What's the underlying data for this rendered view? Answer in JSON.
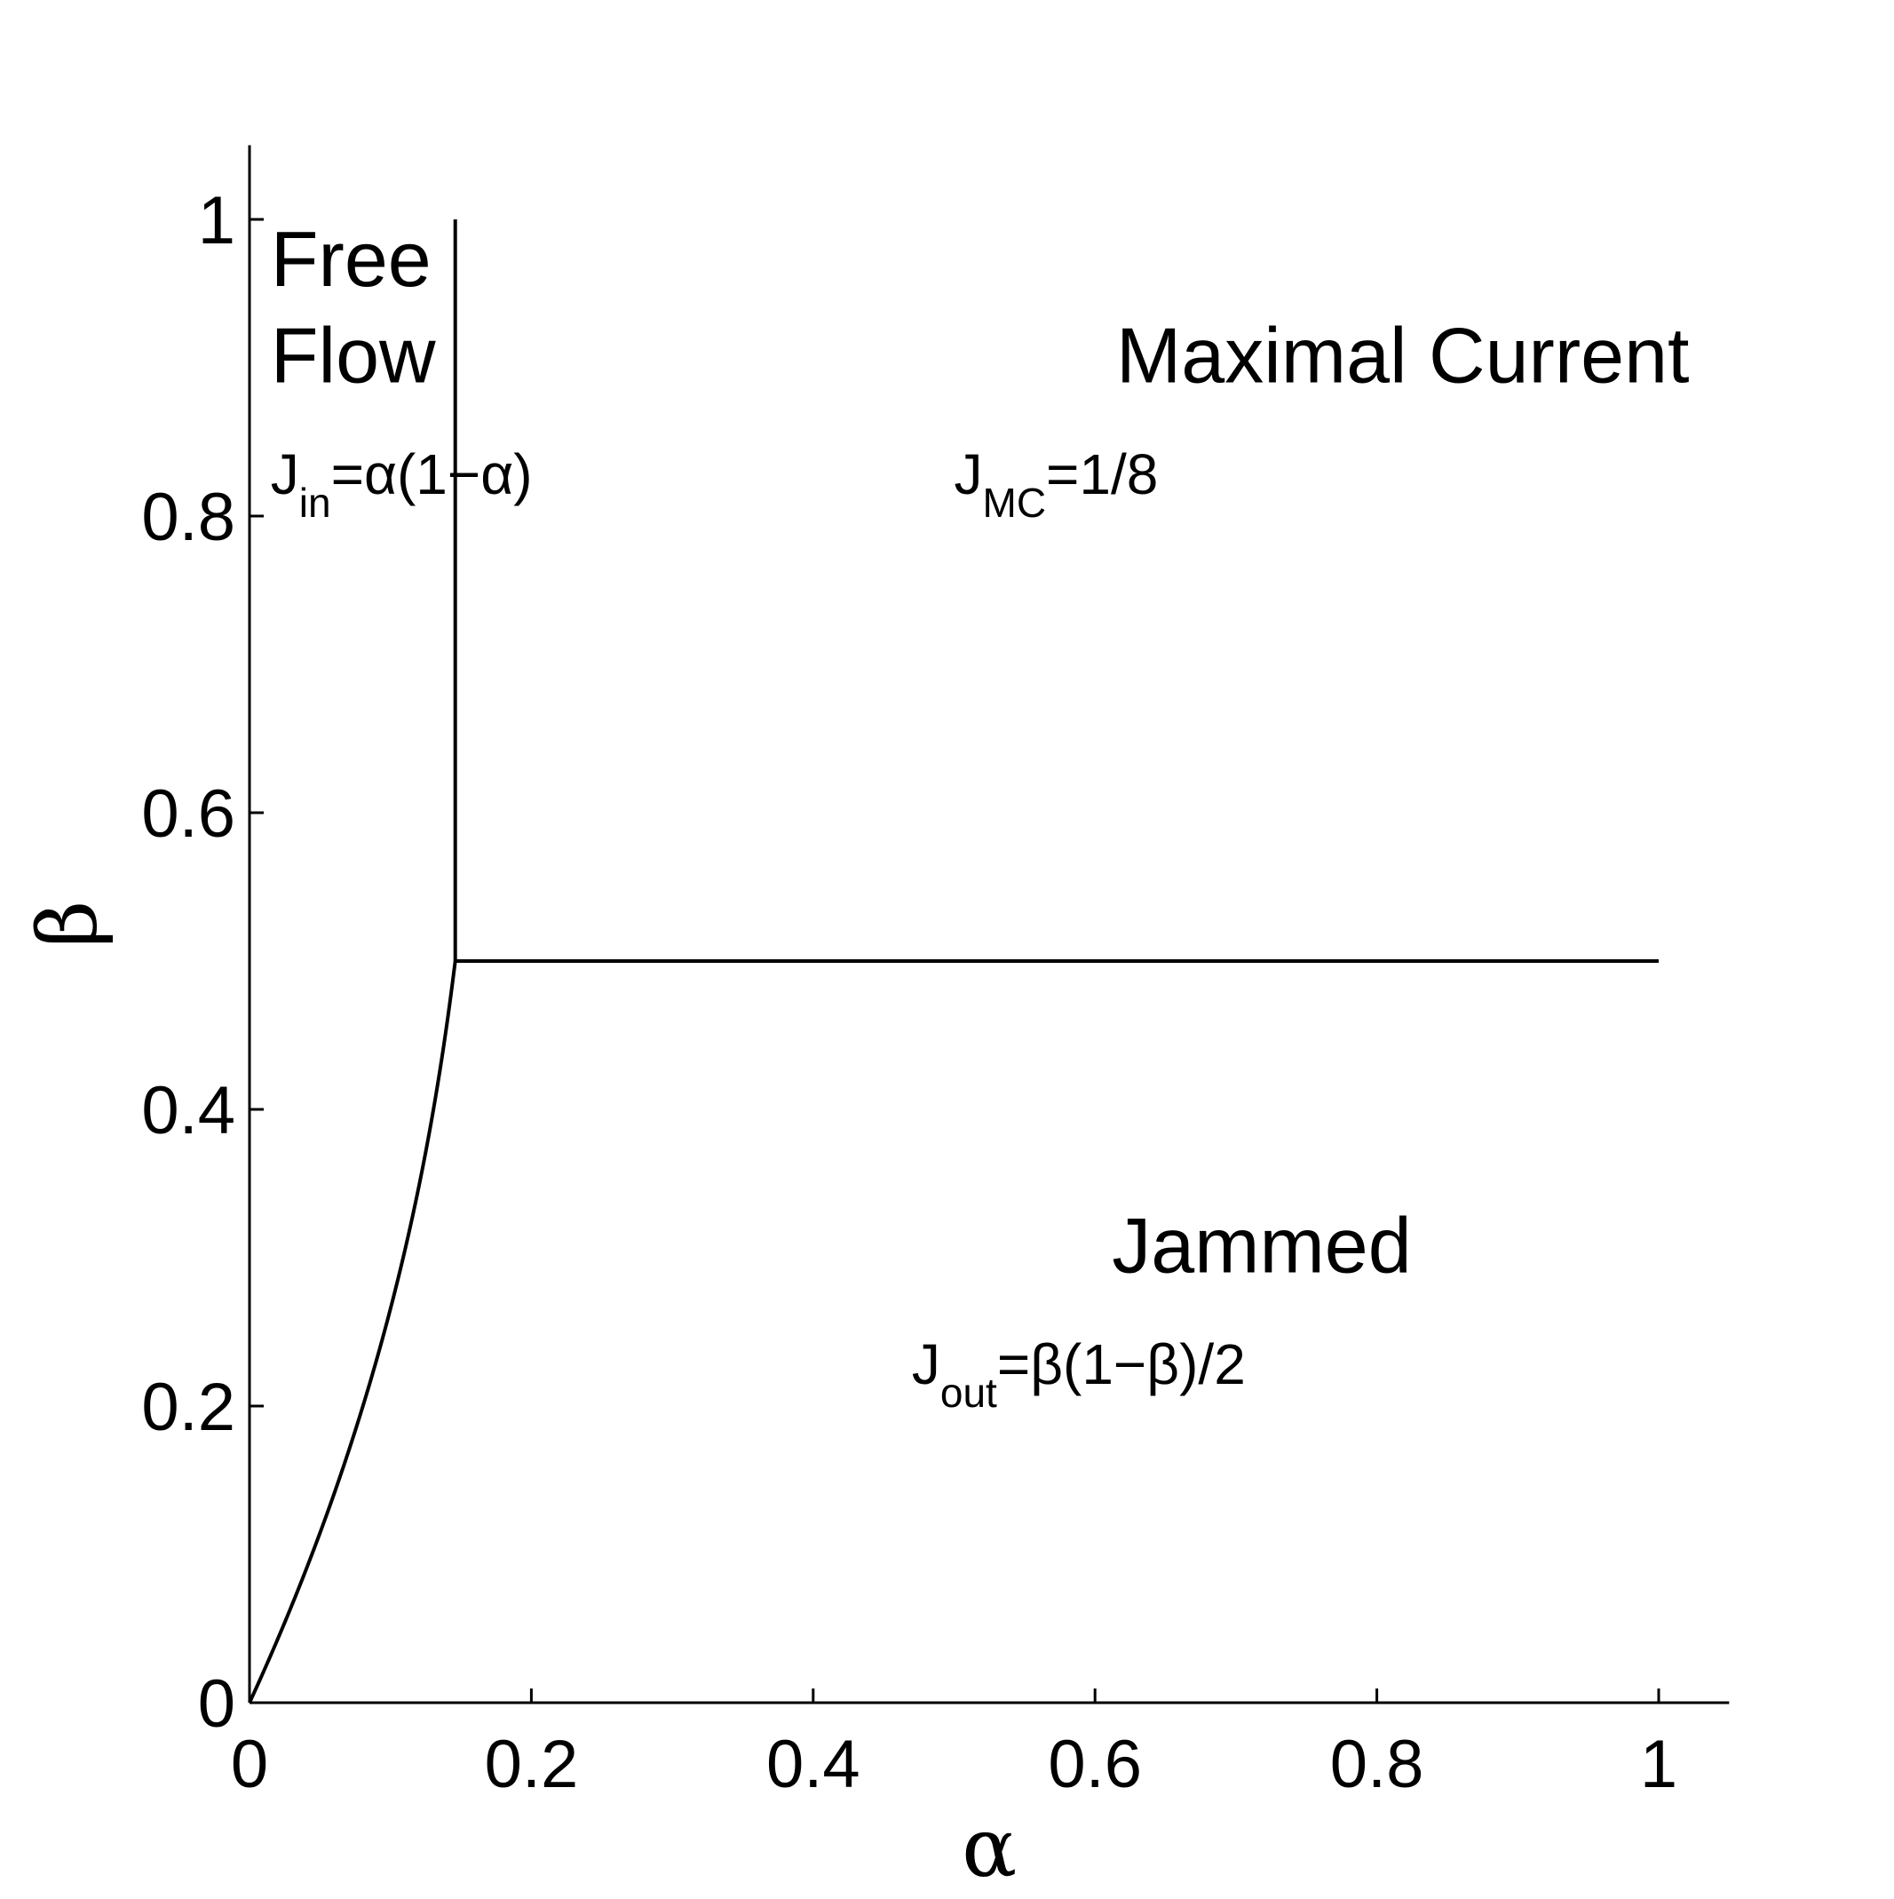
{
  "chart_data": {
    "type": "line",
    "title": "",
    "xlabel": "α",
    "ylabel": "β",
    "xlim": [
      0,
      1.05
    ],
    "ylim": [
      0,
      1.05
    ],
    "grid": false,
    "x_ticks": [
      0,
      0.2,
      0.4,
      0.6,
      0.8,
      1
    ],
    "x_tick_labels": [
      "0",
      "0.2",
      "0.4",
      "0.6",
      "0.8",
      "1"
    ],
    "y_ticks": [
      0,
      0.2,
      0.4,
      0.6,
      0.8,
      1
    ],
    "y_tick_labels": [
      "0",
      "0.2",
      "0.4",
      "0.6",
      "0.8",
      "1"
    ],
    "series": [
      {
        "points": [
          [
            0,
            0
          ],
          [
            0.146,
            0.5
          ]
        ]
      },
      {
        "points": [
          [
            0.146,
            0.5
          ],
          [
            0.146,
            1
          ]
        ]
      },
      {
        "points": [
          [
            0.146,
            0.5
          ],
          [
            1,
            0.5
          ]
        ]
      }
    ],
    "annotations": [
      {
        "text": "Free",
        "x": 0.015,
        "y": 0.955
      },
      {
        "text": "Flow",
        "x": 0.015,
        "y": 0.89
      },
      {
        "text": "Maximal Current",
        "x": 0.615,
        "y": 0.89
      },
      {
        "text": "Jammed",
        "x": 0.612,
        "y": 0.29
      },
      {
        "main": "J",
        "sub": "in",
        "rest": "=α(1−α)",
        "x": 0.015,
        "y": 0.815
      },
      {
        "main": "J",
        "sub": "MC",
        "rest": "=1/8",
        "x": 0.5,
        "y": 0.815
      },
      {
        "main": "J",
        "sub": "out",
        "rest": "=β(1−β)/2",
        "x": 0.47,
        "y": 0.215
      }
    ]
  }
}
